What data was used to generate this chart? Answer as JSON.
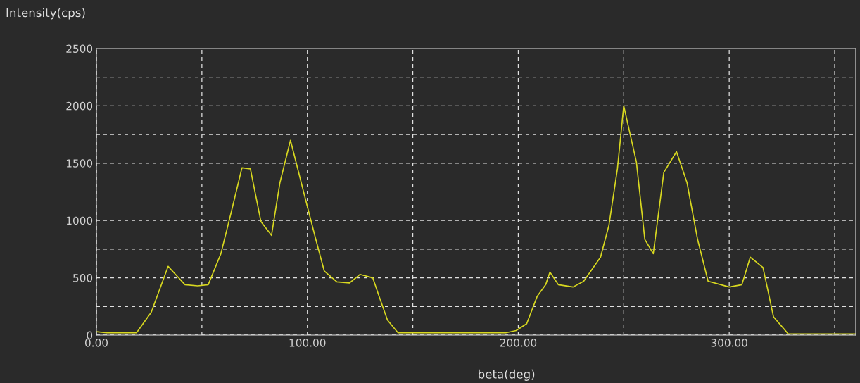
{
  "chart_data": {
    "type": "line",
    "ylabel": "Intensity(cps)",
    "xlabel": "beta(deg)",
    "x": [
      0,
      5,
      19,
      26,
      34,
      42,
      48,
      53,
      59,
      64,
      69,
      73,
      78,
      83,
      87,
      92,
      98,
      104,
      108,
      114,
      120,
      125,
      131,
      134,
      138,
      143,
      194,
      199,
      204,
      209,
      213,
      215,
      219,
      226,
      231,
      239,
      243,
      247,
      250,
      256,
      260,
      264,
      269,
      275,
      280,
      285,
      290,
      300,
      306,
      310,
      316,
      318,
      321,
      328,
      360
    ],
    "series": [
      {
        "color": "#d8d820",
        "values": [
          30,
          20,
          20,
          200,
          600,
          440,
          430,
          440,
          710,
          1080,
          1460,
          1450,
          990,
          870,
          1330,
          1700,
          1265,
          835,
          560,
          465,
          455,
          530,
          500,
          340,
          130,
          20,
          20,
          40,
          100,
          340,
          440,
          550,
          440,
          420,
          470,
          680,
          960,
          1450,
          2000,
          1510,
          835,
          710,
          1420,
          1600,
          1330,
          835,
          470,
          420,
          440,
          680,
          590,
          420,
          160,
          10,
          10
        ]
      }
    ],
    "xlim": [
      0,
      360
    ],
    "xticks": [
      {
        "value": 0,
        "label": "0.00"
      },
      {
        "value": 50,
        "label": null
      },
      {
        "value": 100,
        "label": "100.00"
      },
      {
        "value": 150,
        "label": null
      },
      {
        "value": 200,
        "label": "200.00"
      },
      {
        "value": 250,
        "label": null
      },
      {
        "value": 300,
        "label": "300.00"
      },
      {
        "value": 350,
        "label": null
      }
    ],
    "ylim": [
      0,
      2500
    ],
    "yticks": [
      0,
      {
        "value": 250,
        "label": null
      },
      500,
      {
        "value": 750,
        "label": null
      },
      1000,
      {
        "value": 1250,
        "label": null
      },
      1500,
      {
        "value": 1750,
        "label": null
      },
      2000,
      {
        "value": 2250,
        "label": null
      },
      2500
    ],
    "grid": true,
    "line_style": "solid",
    "marker": "none"
  }
}
